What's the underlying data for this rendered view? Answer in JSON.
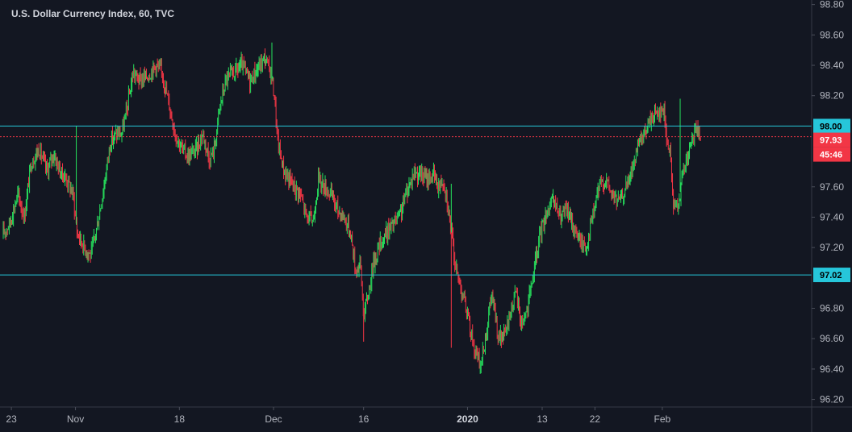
{
  "chart_data": {
    "type": "candlestick",
    "title": "U.S. Dollar Currency Index, 60, TVC",
    "ylim": [
      96.15,
      98.83
    ],
    "y_ticks": [
      "98.80",
      "98.60",
      "98.40",
      "98.20",
      "97.60",
      "97.40",
      "97.20",
      "96.80",
      "96.60",
      "96.40",
      "96.20"
    ],
    "x_ticks": [
      {
        "label": "23",
        "t": 0.014
      },
      {
        "label": "Nov",
        "t": 0.093
      },
      {
        "label": "18",
        "t": 0.221
      },
      {
        "label": "Dec",
        "t": 0.337
      },
      {
        "label": "16",
        "t": 0.448
      },
      {
        "label": "2020",
        "t": 0.576,
        "bold": true
      },
      {
        "label": "13",
        "t": 0.668
      },
      {
        "label": "22",
        "t": 0.733
      },
      {
        "label": "Feb",
        "t": 0.816
      }
    ],
    "horizontal_lines": [
      {
        "value": 98.0,
        "label": "98.00",
        "color": "#26c6da"
      },
      {
        "value": 97.02,
        "label": "97.02",
        "color": "#26c6da"
      }
    ],
    "last_price": {
      "value": 97.93,
      "label": "97.93",
      "countdown": "45:46",
      "color": "#f23645"
    },
    "price_path": [
      [
        0.0,
        97.26
      ],
      [
        0.012,
        97.36
      ],
      [
        0.022,
        97.55
      ],
      [
        0.03,
        97.4
      ],
      [
        0.038,
        97.75
      ],
      [
        0.048,
        97.85
      ],
      [
        0.058,
        97.7
      ],
      [
        0.066,
        97.82
      ],
      [
        0.074,
        97.7
      ],
      [
        0.082,
        97.65
      ],
      [
        0.09,
        97.55
      ],
      [
        0.095,
        97.3
      ],
      [
        0.104,
        97.2
      ],
      [
        0.112,
        97.15
      ],
      [
        0.12,
        97.35
      ],
      [
        0.128,
        97.6
      ],
      [
        0.136,
        97.9
      ],
      [
        0.144,
        97.95
      ],
      [
        0.15,
        97.95
      ],
      [
        0.156,
        98.1
      ],
      [
        0.164,
        98.35
      ],
      [
        0.172,
        98.3
      ],
      [
        0.182,
        98.33
      ],
      [
        0.192,
        98.4
      ],
      [
        0.2,
        98.35
      ],
      [
        0.208,
        98.15
      ],
      [
        0.216,
        97.95
      ],
      [
        0.224,
        97.85
      ],
      [
        0.232,
        97.8
      ],
      [
        0.242,
        97.85
      ],
      [
        0.25,
        97.95
      ],
      [
        0.258,
        97.78
      ],
      [
        0.264,
        97.85
      ],
      [
        0.27,
        98.1
      ],
      [
        0.278,
        98.3
      ],
      [
        0.288,
        98.35
      ],
      [
        0.298,
        98.4
      ],
      [
        0.308,
        98.3
      ],
      [
        0.318,
        98.38
      ],
      [
        0.326,
        98.45
      ],
      [
        0.334,
        98.35
      ],
      [
        0.338,
        98.2
      ],
      [
        0.342,
        97.9
      ],
      [
        0.35,
        97.7
      ],
      [
        0.36,
        97.62
      ],
      [
        0.37,
        97.55
      ],
      [
        0.378,
        97.4
      ],
      [
        0.386,
        97.38
      ],
      [
        0.392,
        97.65
      ],
      [
        0.4,
        97.6
      ],
      [
        0.408,
        97.55
      ],
      [
        0.416,
        97.45
      ],
      [
        0.424,
        97.4
      ],
      [
        0.432,
        97.3
      ],
      [
        0.438,
        97.05
      ],
      [
        0.444,
        97.1
      ],
      [
        0.448,
        96.75
      ],
      [
        0.454,
        96.9
      ],
      [
        0.46,
        97.1
      ],
      [
        0.468,
        97.22
      ],
      [
        0.476,
        97.3
      ],
      [
        0.484,
        97.35
      ],
      [
        0.492,
        97.4
      ],
      [
        0.5,
        97.55
      ],
      [
        0.51,
        97.7
      ],
      [
        0.518,
        97.68
      ],
      [
        0.526,
        97.65
      ],
      [
        0.534,
        97.68
      ],
      [
        0.54,
        97.6
      ],
      [
        0.546,
        97.65
      ],
      [
        0.55,
        97.55
      ],
      [
        0.556,
        97.3
      ],
      [
        0.562,
        97.05
      ],
      [
        0.57,
        96.9
      ],
      [
        0.578,
        96.7
      ],
      [
        0.586,
        96.5
      ],
      [
        0.592,
        96.42
      ],
      [
        0.598,
        96.6
      ],
      [
        0.606,
        96.9
      ],
      [
        0.614,
        96.6
      ],
      [
        0.622,
        96.62
      ],
      [
        0.63,
        96.8
      ],
      [
        0.636,
        96.9
      ],
      [
        0.642,
        96.7
      ],
      [
        0.65,
        96.8
      ],
      [
        0.658,
        97.05
      ],
      [
        0.666,
        97.3
      ],
      [
        0.674,
        97.45
      ],
      [
        0.682,
        97.5
      ],
      [
        0.69,
        97.4
      ],
      [
        0.698,
        97.45
      ],
      [
        0.706,
        97.35
      ],
      [
        0.714,
        97.25
      ],
      [
        0.722,
        97.2
      ],
      [
        0.73,
        97.4
      ],
      [
        0.738,
        97.6
      ],
      [
        0.746,
        97.65
      ],
      [
        0.754,
        97.55
      ],
      [
        0.762,
        97.5
      ],
      [
        0.77,
        97.58
      ],
      [
        0.778,
        97.7
      ],
      [
        0.786,
        97.85
      ],
      [
        0.794,
        97.95
      ],
      [
        0.802,
        98.05
      ],
      [
        0.81,
        98.1
      ],
      [
        0.818,
        98.1
      ],
      [
        0.822,
        97.9
      ],
      [
        0.826,
        97.8
      ],
      [
        0.83,
        97.45
      ],
      [
        0.836,
        97.5
      ],
      [
        0.842,
        97.7
      ],
      [
        0.85,
        97.85
      ],
      [
        0.858,
        97.98
      ],
      [
        0.864,
        97.93
      ]
    ],
    "spikes": [
      {
        "t": 0.094,
        "value": 98.0
      },
      {
        "t": 0.448,
        "value": 96.58
      },
      {
        "t": 0.556,
        "value": 96.54
      },
      {
        "t": 0.556,
        "value": 97.62
      },
      {
        "t": 0.335,
        "value": 98.55
      },
      {
        "t": 0.838,
        "value": 98.18
      }
    ],
    "colors": {
      "background": "#131722",
      "up": "#26e05c",
      "down": "#f23645",
      "hline": "#26c6da",
      "axis_text": "#b2b5be"
    }
  }
}
